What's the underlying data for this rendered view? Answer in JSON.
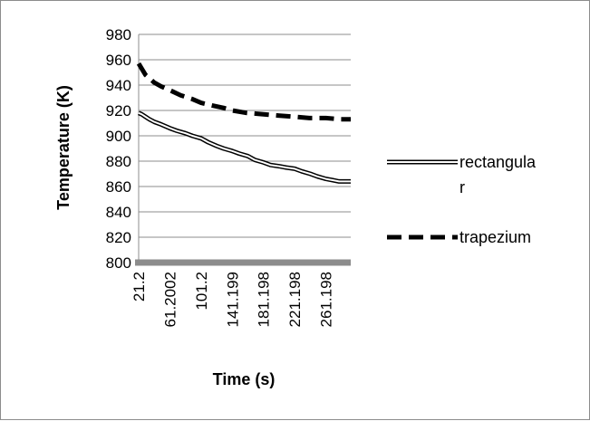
{
  "chart_data": {
    "type": "line",
    "title": "",
    "xlabel": "Time (s)",
    "ylabel": "Temperature (K)",
    "ylim": [
      800,
      980
    ],
    "yticks": [
      800,
      820,
      840,
      860,
      880,
      900,
      920,
      940,
      960,
      980
    ],
    "x_tick_labels": [
      "21.2",
      "61.2002",
      "101.2",
      "141.199",
      "181.198",
      "221.198",
      "261.198"
    ],
    "x_tick_values": [
      21.2,
      61.2002,
      101.2,
      141.199,
      181.198,
      221.198,
      261.198
    ],
    "xlim": [
      21.2,
      293
    ],
    "grid": true,
    "legend_position": "right",
    "series": [
      {
        "name": "rectangular",
        "legend_label_lines": [
          "rectangula",
          "r"
        ],
        "style": "double-line",
        "color": "#000000",
        "x": [
          21.2,
          25,
          30,
          35,
          41.2,
          50,
          61.2,
          70,
          81.2,
          90,
          101.2,
          110,
          121.2,
          130,
          141.2,
          150,
          161.2,
          170,
          181.2,
          190,
          201.2,
          210,
          221.2,
          230,
          241.2,
          250,
          261.2,
          270,
          278,
          285,
          293
        ],
        "values": [
          918,
          917,
          915,
          913,
          911,
          909,
          906,
          904,
          902,
          900,
          898,
          895,
          892,
          890,
          888,
          886,
          884,
          881,
          879,
          877,
          876,
          875,
          874,
          872,
          870,
          868,
          866,
          865,
          864,
          864,
          864
        ]
      },
      {
        "name": "trapezium",
        "style": "dashed",
        "color": "#000000",
        "x": [
          21.2,
          30,
          41.2,
          50,
          61.2,
          75,
          90,
          101.2,
          115,
          130,
          141.2,
          160,
          181.2,
          200,
          221.2,
          240,
          261.2,
          280,
          293
        ],
        "values": [
          957,
          948,
          942,
          939,
          936,
          932,
          929,
          926,
          924,
          922,
          920,
          918,
          917,
          916,
          915,
          914,
          914,
          913,
          913
        ]
      }
    ]
  }
}
